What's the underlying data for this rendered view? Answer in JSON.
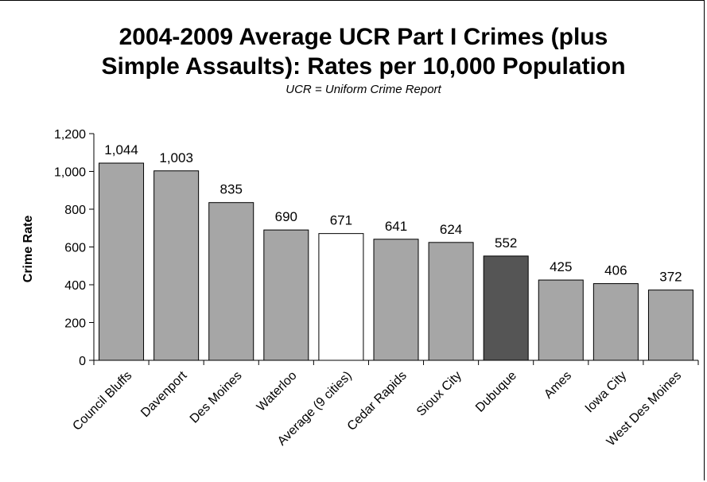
{
  "chart_data": {
    "type": "bar",
    "title_lines": [
      "2004-2009 Average UCR Part I Crimes (plus",
      "Simple Assaults):  Rates per 10,000 Population"
    ],
    "subtitle": "UCR = Uniform Crime Report",
    "xlabel": "",
    "ylabel": "Crime Rate",
    "ylim": [
      0,
      1200
    ],
    "yticks": [
      0,
      200,
      400,
      600,
      800,
      1000,
      1200
    ],
    "ytick_labels": [
      "0",
      "200",
      "400",
      "600",
      "800",
      "1,000",
      "1,200"
    ],
    "categories": [
      "Council Bluffs",
      "Davenport",
      "Des Moines",
      "Waterloo",
      "Average (9 cities)",
      "Cedar Rapids",
      "Sioux City",
      "Dubuque",
      "Ames",
      "Iowa City",
      "West Des Moines"
    ],
    "values": [
      1044,
      1003,
      835,
      690,
      671,
      641,
      624,
      552,
      425,
      406,
      372
    ],
    "value_labels": [
      "1,044",
      "1,003",
      "835",
      "690",
      "671",
      "641",
      "624",
      "552",
      "425",
      "406",
      "372"
    ],
    "bar_colors": [
      "#a6a6a6",
      "#a6a6a6",
      "#a6a6a6",
      "#a6a6a6",
      "#ffffff",
      "#a6a6a6",
      "#a6a6a6",
      "#555555",
      "#a6a6a6",
      "#a6a6a6",
      "#a6a6a6"
    ],
    "bar_stroke": "#000000",
    "grid": false,
    "legend": "none"
  }
}
